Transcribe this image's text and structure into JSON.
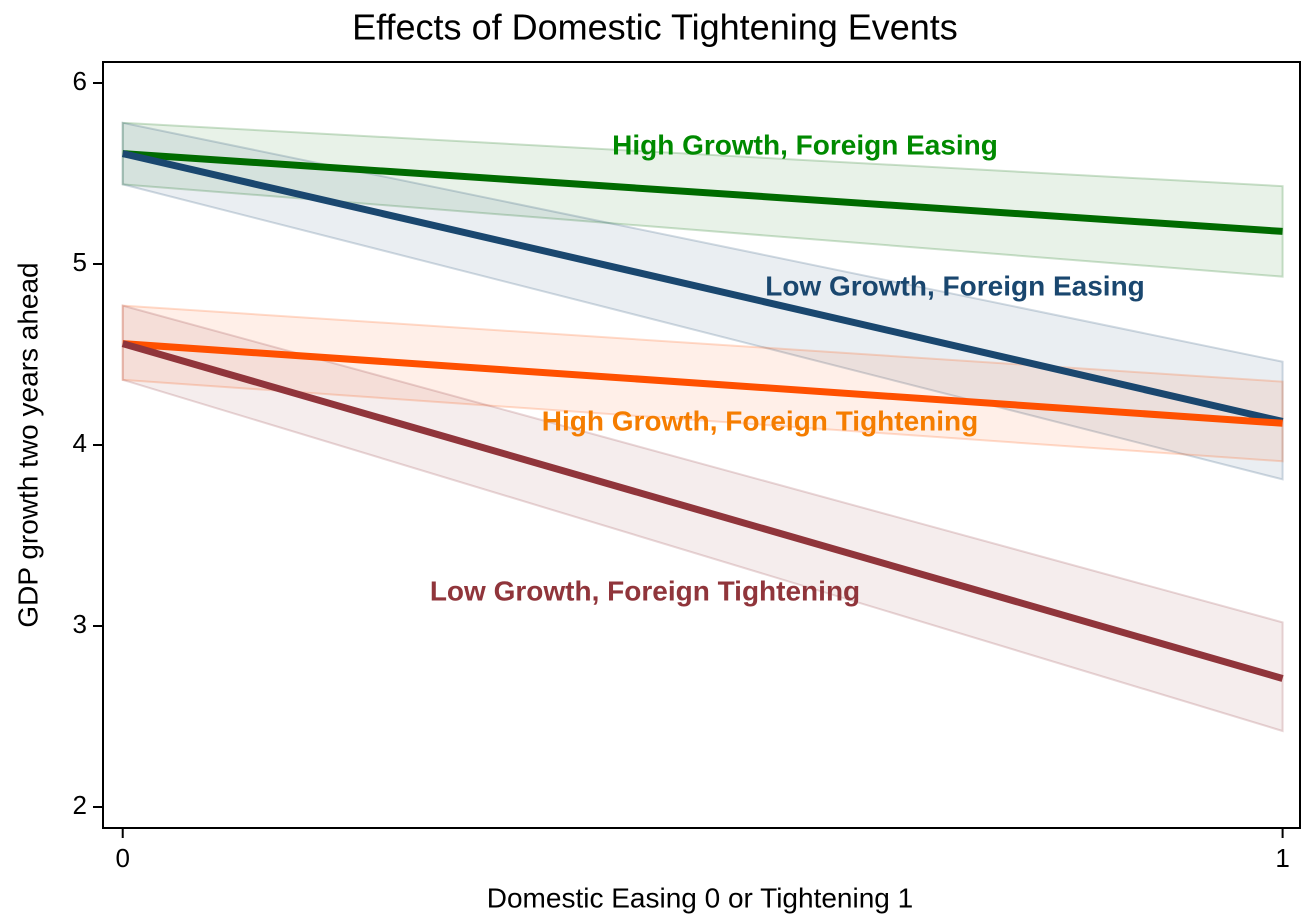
{
  "chart_data": {
    "type": "line",
    "title": "Effects of Domestic Tightening Events",
    "x_label": "Domestic Easing 0 or Tightening 1",
    "y_label": "GDP growth two years ahead",
    "x": [
      0,
      1
    ],
    "xlim": [
      -0.017,
      1.015
    ],
    "ylim": [
      1.884,
      6.116
    ],
    "xticks": [
      0,
      1
    ],
    "yticks": [
      2,
      3,
      4,
      5,
      6
    ],
    "series": [
      {
        "name": "High Growth, Foreign Easing",
        "color": "#006b00",
        "label_color": "#008a00",
        "values": [
          5.61,
          5.18
        ],
        "lower": [
          5.44,
          4.93
        ],
        "upper": [
          5.78,
          5.43
        ]
      },
      {
        "name": "Low Growth, Foreign Easing",
        "color": "#1a476f",
        "label_color": "#1a476f",
        "values": [
          5.61,
          4.13
        ],
        "lower": [
          5.44,
          3.81
        ],
        "upper": [
          5.78,
          4.46
        ]
      },
      {
        "name": "High Growth, Foreign Tightening",
        "color": "#ff5000",
        "label_color": "#f57d00",
        "values": [
          4.56,
          4.12
        ],
        "lower": [
          4.36,
          3.91
        ],
        "upper": [
          4.77,
          4.35
        ]
      },
      {
        "name": "Low Growth, Foreign Tightening",
        "color": "#90353b",
        "label_color": "#90353b",
        "values": [
          4.56,
          2.71
        ],
        "lower": [
          4.36,
          2.42
        ],
        "upper": [
          4.77,
          3.02
        ]
      }
    ]
  }
}
